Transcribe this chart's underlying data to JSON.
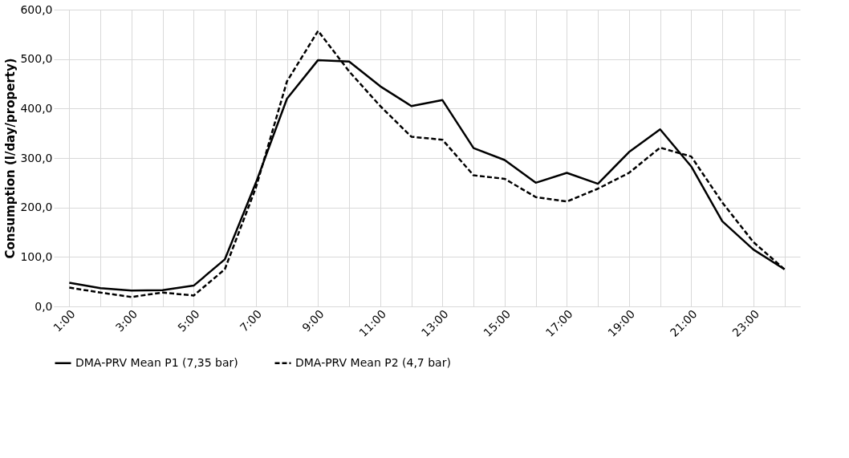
{
  "chart_data": {
    "type": "line",
    "ylabel": "Consumption (l/day/property)",
    "categories": [
      "1:00",
      null,
      "3:00",
      null,
      "5:00",
      null,
      "7:00",
      null,
      "9:00",
      null,
      "11:00",
      null,
      "13:00",
      null,
      "15:00",
      null,
      "17:00",
      null,
      "19:00",
      null,
      "21:00",
      null,
      "23:00",
      null
    ],
    "series": [
      {
        "name": "DMA-PRV Mean P1 (7,35 bar)",
        "color": "#000000",
        "line_style": "solid",
        "values": [
          48,
          37,
          32,
          33,
          42,
          95,
          250,
          420,
          498,
          495,
          445,
          405,
          417,
          320,
          296,
          250,
          270,
          248,
          312,
          358,
          283,
          172,
          115,
          75
        ]
      },
      {
        "name": "DMA-PRV Mean P2 (4,7 bar)",
        "color": "#000000",
        "line_style": "dashed",
        "values": [
          38,
          28,
          19,
          28,
          22,
          75,
          240,
          455,
          557,
          475,
          405,
          343,
          337,
          265,
          258,
          221,
          212,
          238,
          270,
          321,
          303,
          210,
          130,
          75
        ]
      }
    ],
    "ylim": [
      0,
      600
    ],
    "yticks": [
      {
        "value": 0,
        "label": "0,0"
      },
      {
        "value": 100,
        "label": "100,0"
      },
      {
        "value": 200,
        "label": "200,0"
      },
      {
        "value": 300,
        "label": "300,0"
      },
      {
        "value": 400,
        "label": "400,0"
      },
      {
        "value": 500,
        "label": "500,0"
      },
      {
        "value": 600,
        "label": "600,0"
      }
    ],
    "grid": true,
    "legend": "bottom",
    "marker": "none"
  }
}
